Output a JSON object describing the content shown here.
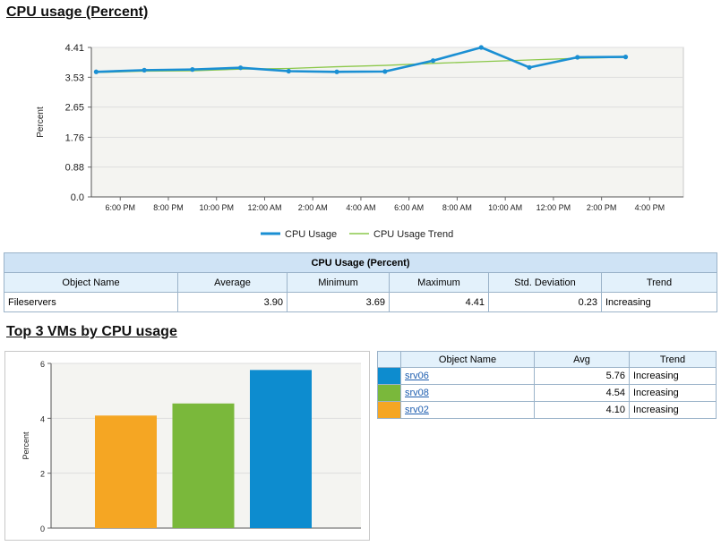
{
  "headings": {
    "cpu": "CPU usage (Percent)",
    "top3": "Top 3 VMs by CPU usage"
  },
  "chart_data": [
    {
      "type": "line",
      "title": "",
      "ylabel": "Percent",
      "ylim": [
        0,
        4.41
      ],
      "yticks": [
        0.0,
        0.88,
        1.76,
        2.65,
        3.53,
        4.41
      ],
      "ytick_labels": [
        "0.0",
        "0.88",
        "1.76",
        "2.65",
        "3.53",
        "4.41"
      ],
      "xtick_labels": [
        "6:00 PM",
        "8:00 PM",
        "10:00 PM",
        "12:00 AM",
        "2:00 AM",
        "4:00 AM",
        "6:00 AM",
        "8:00 AM",
        "10:00 AM",
        "12:00 PM",
        "2:00 PM",
        "4:00 PM"
      ],
      "x": [
        "5:00 PM",
        "7:00 PM",
        "9:00 PM",
        "11:00 PM",
        "1:00 AM",
        "3:00 AM",
        "5:00 AM",
        "7:00 AM",
        "9:00 AM",
        "11:00 AM",
        "1:00 PM",
        "3:00 PM"
      ],
      "grid": true,
      "legend_position": "bottom",
      "series": [
        {
          "name": "CPU Usage",
          "color": "#1a8fd3",
          "values": [
            3.69,
            3.74,
            3.76,
            3.81,
            3.71,
            3.69,
            3.7,
            4.02,
            4.41,
            3.82,
            4.12,
            4.13
          ]
        },
        {
          "name": "CPU Usage Trend",
          "color": "#8cc84b",
          "values": [
            3.67,
            3.71,
            3.72,
            3.77,
            3.79,
            3.84,
            3.88,
            3.94,
            3.99,
            4.04,
            4.09,
            4.12
          ]
        }
      ]
    },
    {
      "type": "bar",
      "title": "",
      "ylabel": "Percent",
      "ylim": [
        0,
        6
      ],
      "yticks": [
        0,
        2,
        4,
        6
      ],
      "categories": [
        "srv02",
        "srv08",
        "srv06"
      ],
      "values": [
        4.1,
        4.54,
        5.76
      ],
      "colors": [
        "#f5a623",
        "#7ab83b",
        "#0d8ccf"
      ],
      "grid": true
    }
  ],
  "cpu_table": {
    "title": "CPU Usage (Percent)",
    "headers": [
      "Object Name",
      "Average",
      "Minimum",
      "Maximum",
      "Std. Deviation",
      "Trend"
    ],
    "row": {
      "name": "Fileservers",
      "average": "3.90",
      "minimum": "3.69",
      "maximum": "4.41",
      "std": "0.23",
      "trend": "Increasing"
    }
  },
  "vm_table": {
    "headers": [
      "Object Name",
      "Avg",
      "Trend"
    ],
    "rows": [
      {
        "name": "srv06",
        "avg": "5.76",
        "trend": "Increasing",
        "color": "#0d8ccf"
      },
      {
        "name": "srv08",
        "avg": "4.54",
        "trend": "Increasing",
        "color": "#7ab83b"
      },
      {
        "name": "srv02",
        "avg": "4.10",
        "trend": "Increasing",
        "color": "#f5a623"
      }
    ]
  }
}
